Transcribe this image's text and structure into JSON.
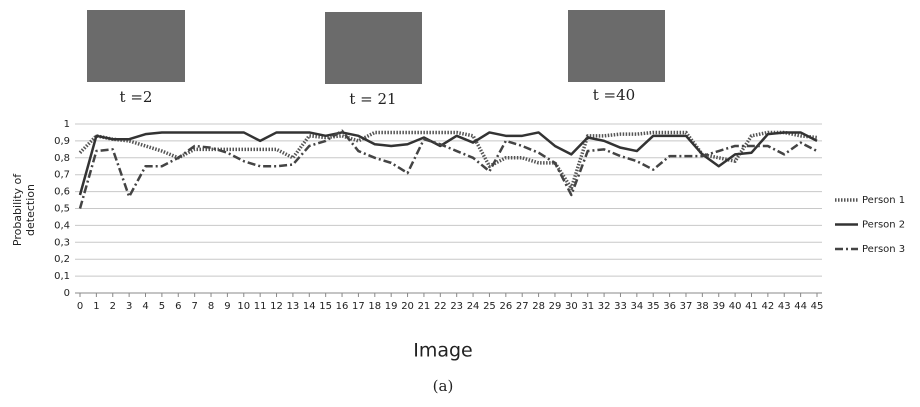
{
  "chart_data": {
    "type": "line",
    "annotations": [
      "t =2",
      "t = 21",
      "t =40"
    ],
    "caption": "(a)",
    "xlabel": "Image",
    "ylabel": [
      "Probability of",
      "detection"
    ],
    "x": [
      0,
      1,
      2,
      3,
      4,
      5,
      6,
      7,
      8,
      9,
      10,
      11,
      12,
      13,
      14,
      15,
      16,
      17,
      18,
      19,
      20,
      21,
      22,
      23,
      24,
      25,
      26,
      27,
      28,
      29,
      30,
      31,
      32,
      33,
      34,
      35,
      36,
      37,
      38,
      39,
      40,
      41,
      42,
      43,
      44,
      45
    ],
    "xlim": [
      0,
      45
    ],
    "ylim": [
      0,
      1
    ],
    "yticks": [
      0,
      {
        "value": 0.1,
        "label": "0,1"
      },
      {
        "value": 0.2,
        "label": "0,2"
      },
      {
        "value": 0.3,
        "label": "0,3"
      },
      {
        "value": 0.4,
        "label": "0,4"
      },
      {
        "value": 0.5,
        "label": "0,5"
      },
      {
        "value": 0.6,
        "label": "0,6"
      },
      {
        "value": 0.7,
        "label": "0,7"
      },
      {
        "value": 0.8,
        "label": "0,8"
      },
      {
        "value": 0.9,
        "label": "0,9"
      },
      1
    ],
    "grid": true,
    "legend": "right",
    "series": [
      {
        "name": "Person 1",
        "color": "#555555",
        "dash": "dotted",
        "values": [
          0.83,
          0.93,
          0.91,
          0.9,
          0.87,
          0.84,
          0.8,
          0.85,
          0.85,
          0.85,
          0.85,
          0.85,
          0.85,
          0.8,
          0.93,
          0.92,
          0.93,
          0.9,
          0.95,
          0.95,
          0.95,
          0.95,
          0.95,
          0.95,
          0.93,
          0.75,
          0.8,
          0.8,
          0.77,
          0.77,
          0.62,
          0.93,
          0.93,
          0.94,
          0.94,
          0.95,
          0.95,
          0.95,
          0.82,
          0.8,
          0.78,
          0.93,
          0.95,
          0.95,
          0.93,
          0.92
        ]
      },
      {
        "name": "Person 2",
        "color": "#333333",
        "dash": "solid",
        "values": [
          0.58,
          0.93,
          0.91,
          0.91,
          0.94,
          0.95,
          0.95,
          0.95,
          0.95,
          0.95,
          0.95,
          0.9,
          0.95,
          0.95,
          0.95,
          0.93,
          0.95,
          0.93,
          0.88,
          0.87,
          0.88,
          0.92,
          0.87,
          0.93,
          0.89,
          0.95,
          0.93,
          0.93,
          0.95,
          0.87,
          0.82,
          0.92,
          0.9,
          0.86,
          0.84,
          0.93,
          0.93,
          0.93,
          0.82,
          0.75,
          0.82,
          0.83,
          0.94,
          0.95,
          0.95,
          0.9
        ]
      },
      {
        "name": "Person 3",
        "color": "#444444",
        "dash": "dashdot",
        "values": [
          0.5,
          0.84,
          0.85,
          0.57,
          0.75,
          0.75,
          0.8,
          0.87,
          0.86,
          0.83,
          0.78,
          0.75,
          0.75,
          0.76,
          0.87,
          0.9,
          0.96,
          0.84,
          0.8,
          0.77,
          0.71,
          0.91,
          0.88,
          0.84,
          0.8,
          0.72,
          0.9,
          0.87,
          0.83,
          0.77,
          0.58,
          0.84,
          0.85,
          0.81,
          0.78,
          0.73,
          0.81,
          0.81,
          0.81,
          0.84,
          0.87,
          0.87,
          0.87,
          0.82,
          0.89,
          0.84
        ]
      }
    ]
  }
}
